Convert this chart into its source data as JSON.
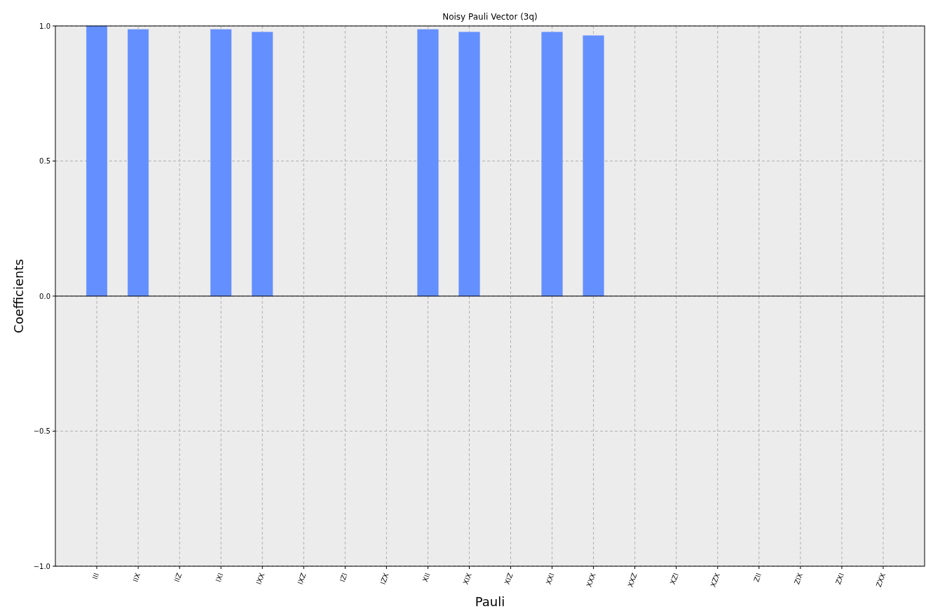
{
  "chart_data": {
    "type": "bar",
    "title": "Noisy Pauli Vector (3q)",
    "xlabel": "Pauli",
    "ylabel": "Coefficients",
    "categories": [
      "III",
      "IIX",
      "IIZ",
      "IXI",
      "IXX",
      "IXZ",
      "IZI",
      "IZX",
      "XII",
      "XIX",
      "XIZ",
      "XXI",
      "XXX",
      "XXZ",
      "XZI",
      "XZX",
      "ZII",
      "ZIX",
      "ZXI",
      "ZXX"
    ],
    "values": [
      1.0,
      0.987,
      0,
      0.987,
      0.977,
      0,
      0,
      0,
      0.987,
      0.977,
      0,
      0.977,
      0.964,
      0,
      0,
      0,
      0,
      0,
      0,
      0
    ],
    "color": "#648fff",
    "ylim": [
      -1,
      1
    ],
    "yticks": [
      {
        "value": -1,
        "label": "−1.0"
      },
      {
        "value": -0.5,
        "label": "−0.5"
      },
      {
        "value": 0,
        "label": "0.0"
      },
      {
        "value": 0.5,
        "label": "0.5"
      },
      {
        "value": 1,
        "label": "1.0"
      }
    ],
    "grid": true,
    "ref_lines": [
      {
        "axis": "y",
        "value": 0,
        "label": null,
        "color": "#000000"
      }
    ]
  }
}
